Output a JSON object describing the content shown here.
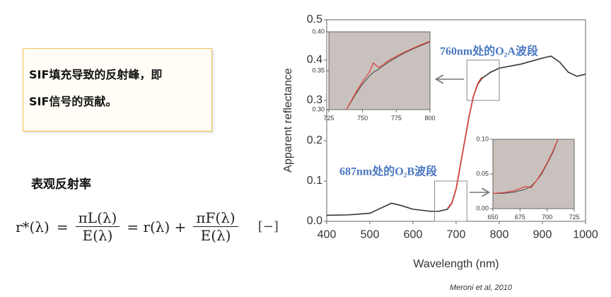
{
  "note": [
    "SIF填充导致的反射峰，即",
    "SIF信号的贡献。"
  ],
  "heading": "表观反射率",
  "formula": {
    "lhs": "r*(λ)",
    "eq1": "=",
    "frac1": {
      "num": "πL(λ)",
      "den": "E(λ)"
    },
    "mid": "= r(λ) +",
    "frac2": {
      "num": "πF(λ)",
      "den": "E(λ)"
    },
    "unit": "[−]"
  },
  "chart_data": [
    {
      "type": "line",
      "xlabel": "Wavelength (nm)",
      "ylabel": "Apparent reflectance",
      "source": "Meroni et al, 2010",
      "annotations": [
        "760nm处的O₂A波段",
        "687nm处的O₂B波段"
      ],
      "x": [
        400,
        450,
        500,
        530,
        550,
        570,
        600,
        640,
        660,
        680,
        690,
        700,
        710,
        720,
        730,
        740,
        750,
        760,
        780,
        800,
        850,
        900,
        920,
        940,
        960,
        980,
        1000
      ],
      "series": [
        {
          "color": "#333333",
          "values": [
            0.015,
            0.016,
            0.02,
            0.035,
            0.045,
            0.04,
            0.03,
            0.025,
            0.025,
            0.03,
            0.045,
            0.08,
            0.14,
            0.2,
            0.26,
            0.31,
            0.34,
            0.355,
            0.37,
            0.38,
            0.39,
            0.405,
            0.41,
            0.395,
            0.37,
            0.36,
            0.365
          ]
        },
        {
          "color": "#e0403a",
          "values": [
            null,
            null,
            null,
            null,
            null,
            null,
            null,
            null,
            null,
            0.032,
            0.046,
            0.081,
            0.141,
            0.2,
            0.26,
            0.31,
            0.342,
            0.358,
            null,
            null,
            null,
            null,
            null,
            null,
            null,
            null,
            null
          ]
        }
      ],
      "xlim": [
        400,
        1000
      ],
      "xticks": [
        400,
        500,
        600,
        700,
        800,
        900,
        1000
      ],
      "ylim": [
        0,
        0.5
      ],
      "yticks": [
        {
          "value": 0,
          "label": "0.0"
        },
        0.1,
        0.2,
        0.3,
        0.4,
        0.5
      ]
    },
    {
      "type": "line",
      "background": "#c9c1bd",
      "x": [
        738,
        745,
        750,
        755,
        758,
        762,
        770,
        780,
        790,
        800
      ],
      "series": [
        {
          "color": "#555555",
          "values": [
            0.3,
            0.32,
            0.333,
            0.343,
            0.348,
            0.352,
            0.362,
            0.372,
            0.38,
            0.387
          ]
        },
        {
          "color": "#e0403a",
          "values": [
            0.3,
            0.322,
            0.336,
            0.348,
            0.36,
            0.354,
            0.364,
            0.373,
            0.381,
            0.388
          ]
        }
      ],
      "xlim": [
        725,
        800
      ],
      "xticks": [
        725,
        750,
        775,
        800
      ],
      "ylim": [
        0.3,
        0.4
      ],
      "yticks": [
        {
          "value": 0.3,
          "label": "0.30"
        },
        {
          "value": 0.35,
          "label": "0.35"
        },
        {
          "value": 0.4,
          "label": "0.40"
        }
      ]
    },
    {
      "type": "line",
      "background": "#c9c1bd",
      "x": [
        650,
        660,
        670,
        680,
        685,
        690,
        695,
        700,
        705,
        710
      ],
      "series": [
        {
          "color": "#555555",
          "values": [
            0.022,
            0.022,
            0.024,
            0.028,
            0.032,
            0.04,
            0.05,
            0.065,
            0.08,
            0.1
          ]
        },
        {
          "color": "#e0403a",
          "values": [
            0.022,
            0.023,
            0.026,
            0.032,
            0.03,
            0.04,
            0.052,
            0.066,
            0.082,
            0.1
          ]
        }
      ],
      "xlim": [
        650,
        725
      ],
      "xticks": [
        650,
        675,
        700,
        725
      ],
      "ylim": [
        0,
        0.1
      ],
      "yticks": [
        {
          "value": 0,
          "label": "0.00"
        },
        {
          "value": 0.05,
          "label": "0.05"
        },
        {
          "value": 0.1,
          "label": "0.10"
        }
      ]
    }
  ]
}
